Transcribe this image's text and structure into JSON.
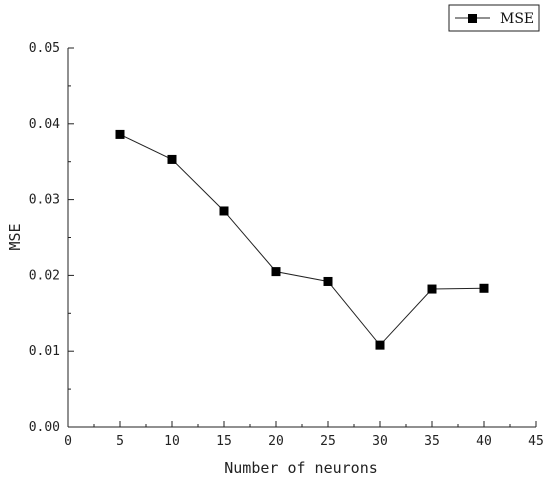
{
  "chart_data": {
    "type": "line",
    "xlabel": "Number of neurons",
    "ylabel": "MSE",
    "xlim": [
      0,
      45
    ],
    "ylim": [
      0,
      0.05
    ],
    "x_ticks": [
      "0",
      "5",
      "10",
      "15",
      "20",
      "25",
      "30",
      "35",
      "40",
      "45"
    ],
    "y_ticks": [
      "0.00",
      "0.01",
      "0.02",
      "0.03",
      "0.04",
      "0.05"
    ],
    "grid": false,
    "legend_position": "top-right",
    "series": [
      {
        "name": "MSE",
        "color": "#000000",
        "marker": "square",
        "x": [
          5,
          10,
          15,
          20,
          25,
          30,
          35,
          40
        ],
        "y": [
          0.0386,
          0.0353,
          0.0285,
          0.0205,
          0.0192,
          0.0108,
          0.0182,
          0.0183
        ]
      }
    ]
  }
}
